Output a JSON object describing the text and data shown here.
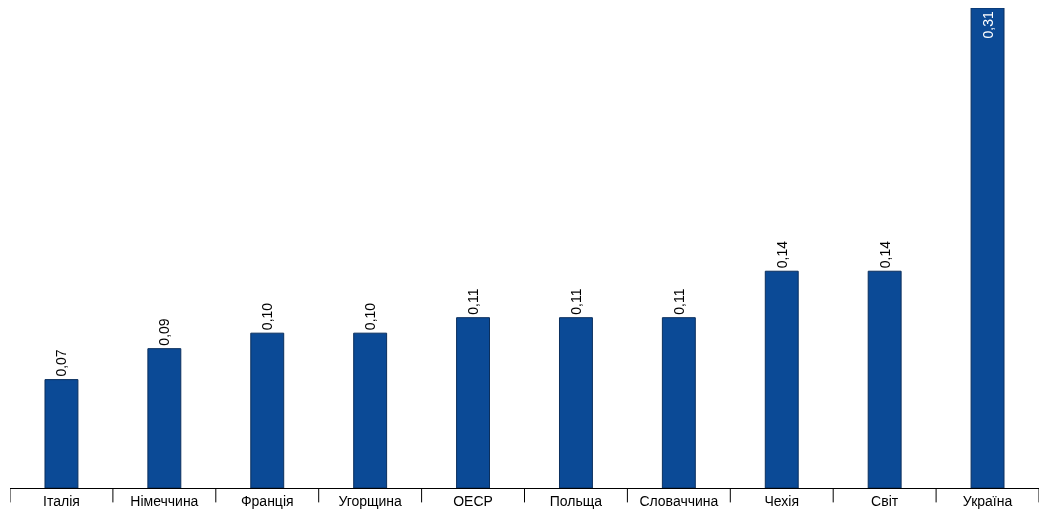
{
  "chart_data": {
    "type": "bar",
    "categories": [
      "Італія",
      "Німеччина",
      "Франція",
      "Угорщина",
      "ОЕСР",
      "Польща",
      "Словаччина",
      "Чехія",
      "Світ",
      "Україна"
    ],
    "values": [
      0.07,
      0.09,
      0.1,
      0.1,
      0.11,
      0.11,
      0.11,
      0.14,
      0.14,
      0.31
    ],
    "value_labels": [
      "0,07",
      "0,09",
      "0,10",
      "0,10",
      "0,11",
      "0,11",
      "0,11",
      "0,14",
      "0,14",
      "0,31"
    ],
    "color": "#0b4a96",
    "tick_labels": "x"
  }
}
